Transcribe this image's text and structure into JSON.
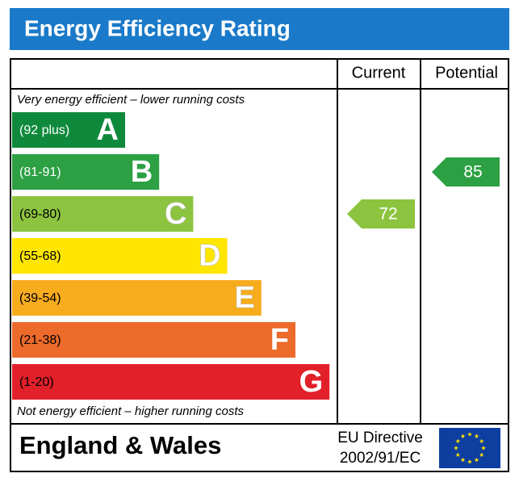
{
  "title": "Energy Efficiency Rating",
  "columns": [
    "Current",
    "Potential"
  ],
  "top_note": "Very energy efficient – lower running costs",
  "bottom_note": "Not energy efficient – higher running costs",
  "bands": [
    {
      "range": "(92 plus)",
      "letter": "A",
      "color": "#0f8a3c"
    },
    {
      "range": "(81-91)",
      "letter": "B",
      "color": "#2ca043"
    },
    {
      "range": "(69-80)",
      "letter": "C",
      "color": "#8cc43f"
    },
    {
      "range": "(55-68)",
      "letter": "D",
      "color": "#ffe600"
    },
    {
      "range": "(39-54)",
      "letter": "E",
      "color": "#f7ac1d"
    },
    {
      "range": "(21-38)",
      "letter": "F",
      "color": "#ec6a2a"
    },
    {
      "range": "(1-20)",
      "letter": "G",
      "color": "#e2202a"
    }
  ],
  "current": {
    "value": 72,
    "color": "#8cc43f"
  },
  "potential": {
    "value": 85,
    "color": "#2ca043"
  },
  "footer": {
    "region": "England & Wales",
    "directive_line1": "EU Directive",
    "directive_line2": "2002/91/EC"
  }
}
